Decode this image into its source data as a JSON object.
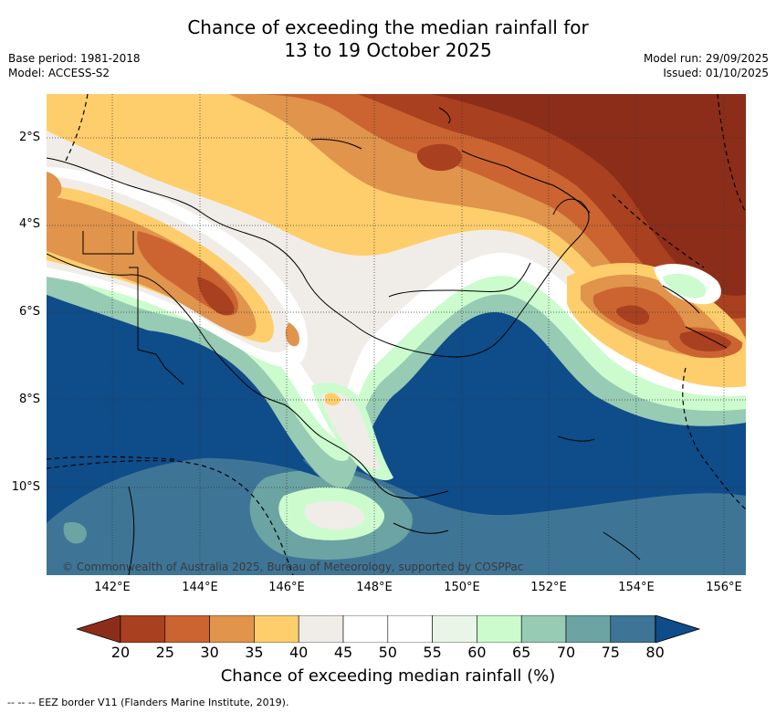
{
  "title_line1": "Chance of exceeding the median rainfall for",
  "title_line2": "13 to 19 October 2025",
  "base_period": "Base period: 1981-2018",
  "model": "Model: ACCESS-S2",
  "model_run": "Model run: 29/09/2025",
  "issued": "Issued: 01/10/2025",
  "lat_labels": [
    "2°S",
    "4°S",
    "6°S",
    "8°S",
    "10°S"
  ],
  "lon_labels": [
    "142°E",
    "144°E",
    "146°E",
    "148°E",
    "150°E",
    "152°E",
    "154°E",
    "156°E"
  ],
  "credit": "© Commonwealth of Australia 2025, Bureau of Meteorology, supported by COSPPac",
  "colorbar": {
    "ticks": [
      "20",
      "25",
      "30",
      "35",
      "40",
      "45",
      "50",
      "55",
      "60",
      "65",
      "70",
      "75",
      "80"
    ],
    "colors": [
      "#a9401f",
      "#cb6430",
      "#e0944c",
      "#fece6c",
      "#f0ede9",
      "#ffffff",
      "#ffffff",
      "#e9f6e7",
      "#ccfcce",
      "#97cbb3",
      "#6ca4a3",
      "#3e7597"
    ],
    "under_color": "#8c2d1a",
    "over_color": "#0f4c8a",
    "label": "Chance of exceeding median rainfall (%)"
  },
  "footer": "--  --  -- EEZ border V11 (Flanders Marine Institute, 2019)."
}
